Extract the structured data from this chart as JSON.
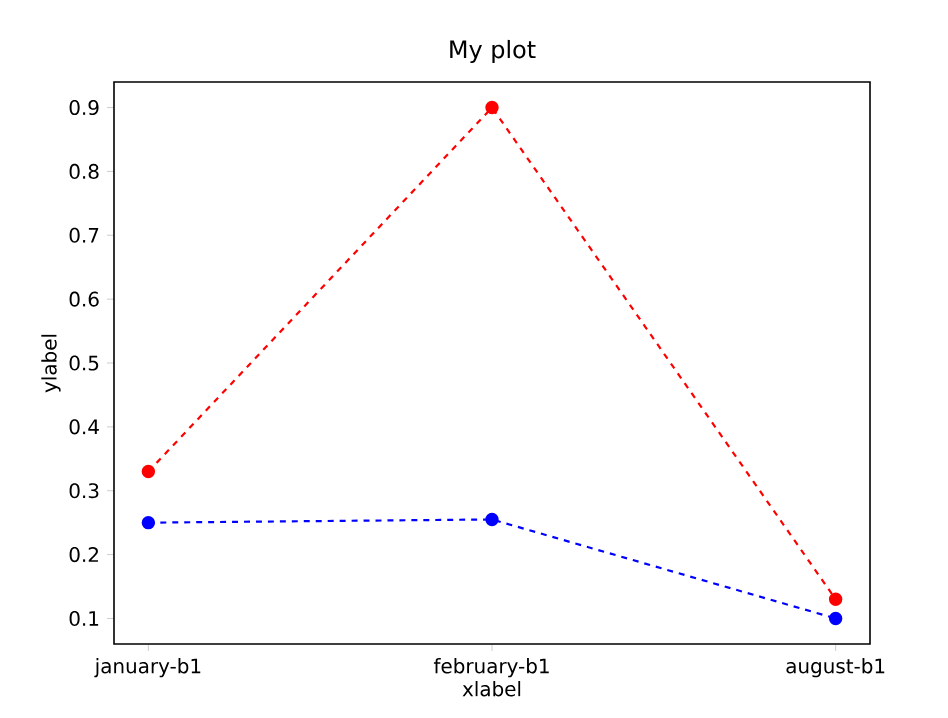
{
  "chart_data": {
    "type": "line",
    "title": "My plot",
    "xlabel": "xlabel",
    "ylabel": "ylabel",
    "categories": [
      "january-b1",
      "february-b1",
      "august-b1"
    ],
    "series": [
      {
        "color": "#ff0000",
        "values": [
          0.33,
          0.9,
          0.13
        ]
      },
      {
        "color": "#0000ff",
        "values": [
          0.25,
          0.255,
          0.1
        ]
      }
    ],
    "ylim": [
      0.06,
      0.94
    ],
    "yticks": [
      0.1,
      0.2,
      0.3,
      0.4,
      0.5,
      0.6,
      0.7,
      0.8,
      0.9
    ],
    "marker": "circle",
    "line_style": "dashed",
    "grid": false
  }
}
